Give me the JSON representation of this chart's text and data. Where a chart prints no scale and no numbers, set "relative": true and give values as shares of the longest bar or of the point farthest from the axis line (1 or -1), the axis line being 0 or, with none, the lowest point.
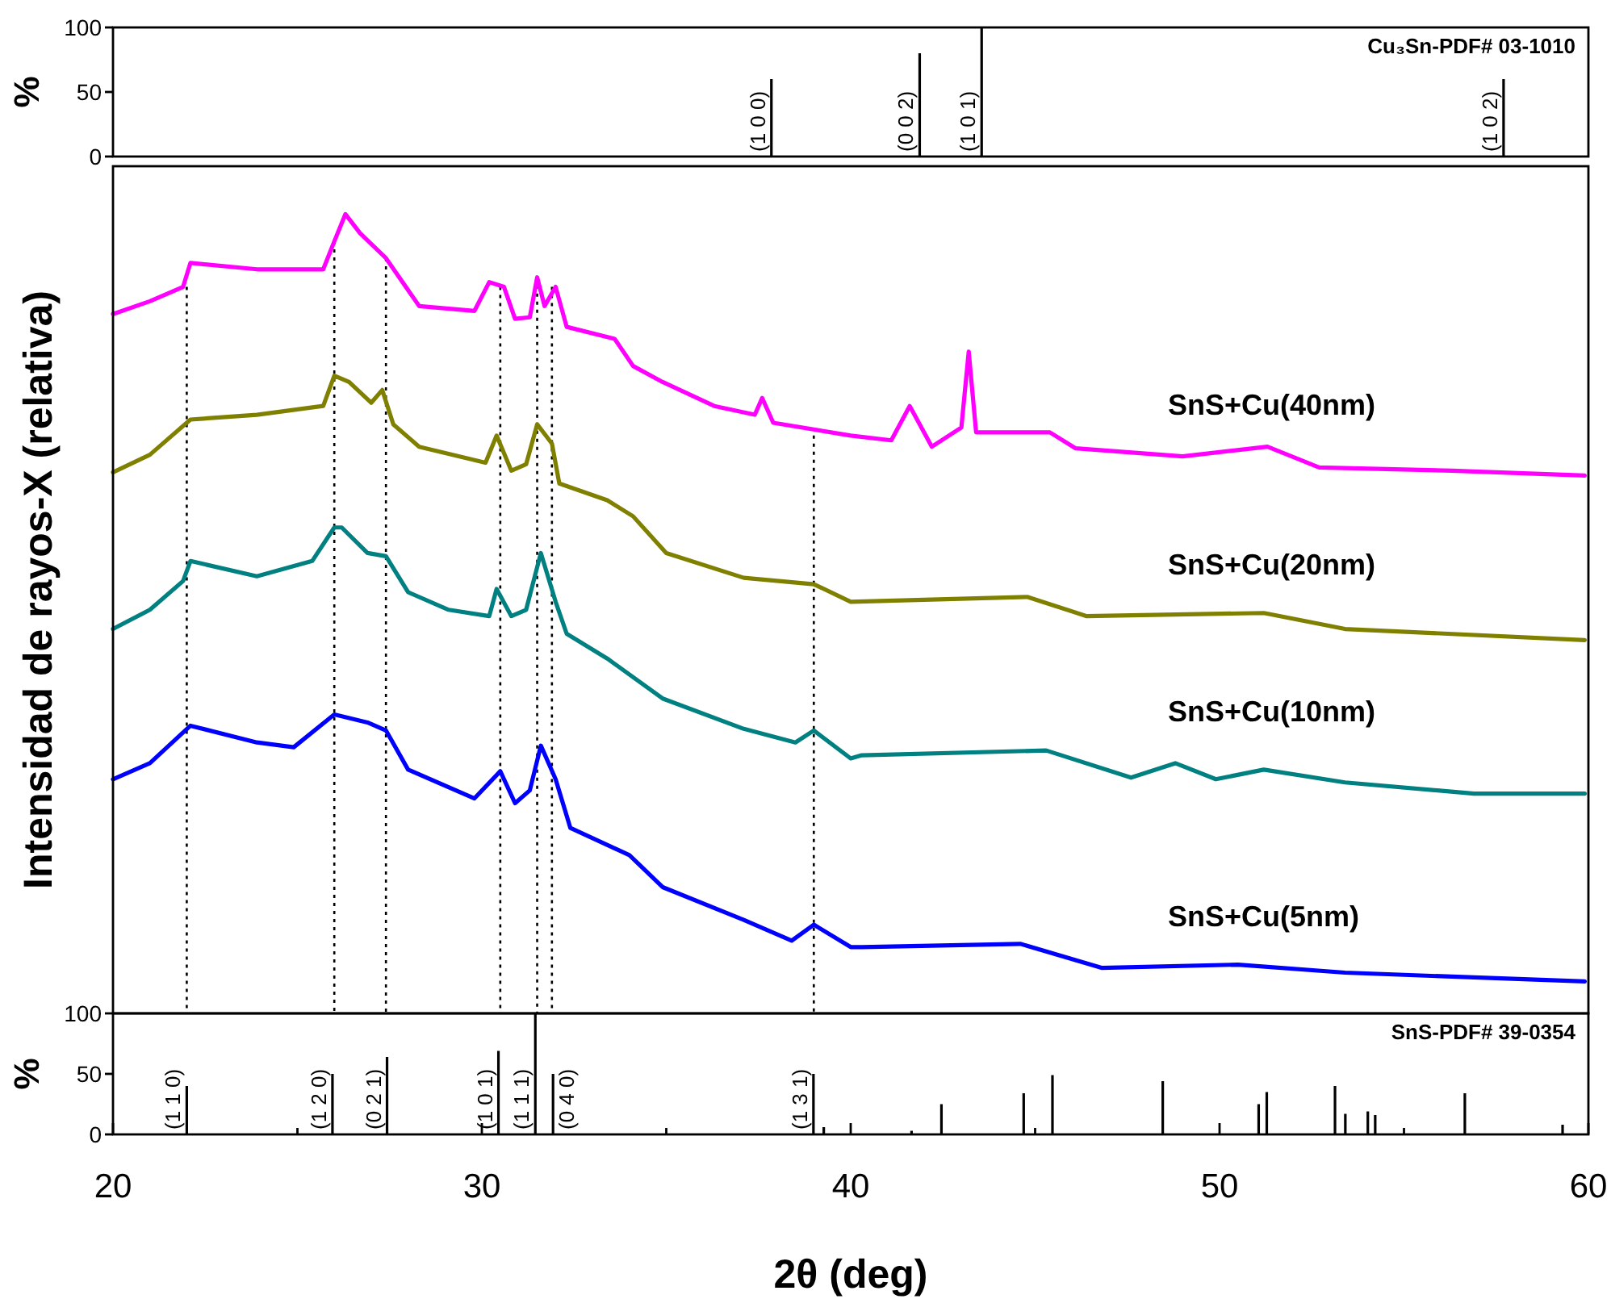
{
  "chart_data": [
    {
      "type": "bar",
      "xlim": [
        20,
        60
      ],
      "ylim": [
        0,
        100
      ],
      "yticks": [
        0,
        50,
        100
      ],
      "ylabel": "%",
      "tick_labels": "y",
      "x": [
        37.85,
        41.87,
        43.55,
        57.7
      ],
      "values": [
        60,
        80,
        100,
        60
      ],
      "color": "#000000",
      "annotations": [
        "Cu₃Sn-PDF# 03-1010",
        {
          "text": "(1 0 0)",
          "x": 37.85,
          "y": 0
        },
        {
          "text": "(0 0 2)",
          "x": 41.87,
          "y": 0
        },
        {
          "text": "(1 0 1)",
          "x": 43.55,
          "y": 0
        },
        {
          "text": "(1 0 2)",
          "x": 57.7,
          "y": 0
        }
      ]
    },
    {
      "type": "line",
      "relative": true,
      "xlim": [
        20,
        60
      ],
      "tick_labels": false,
      "ylabel": "Intensidad de rayos-X (relativa)",
      "line_style": "solid",
      "ref_lines": [
        {
          "axis": "x",
          "value": 22.0,
          "color": "#000000",
          "line_style": "dotted"
        },
        {
          "axis": "x",
          "value": 26.0,
          "color": "#000000",
          "line_style": "dotted"
        },
        {
          "axis": "x",
          "value": 27.4,
          "color": "#000000",
          "line_style": "dotted"
        },
        {
          "axis": "x",
          "value": 30.5,
          "color": "#000000",
          "line_style": "dotted"
        },
        {
          "axis": "x",
          "value": 31.5,
          "color": "#000000",
          "line_style": "dotted"
        },
        {
          "axis": "x",
          "value": 31.9,
          "color": "#000000",
          "line_style": "dotted"
        },
        {
          "axis": "x",
          "value": 39.0,
          "color": "#000000",
          "line_style": "dotted"
        }
      ],
      "series": [
        {
          "name": "SnS+Cu(40nm)",
          "color": "#ff00ff",
          "x": [
            20.0,
            21.0,
            21.9,
            22.1,
            23.9,
            25.7,
            26.0,
            26.3,
            26.7,
            27.4,
            28.3,
            29.8,
            30.2,
            30.6,
            30.9,
            31.3,
            31.5,
            31.7,
            32.0,
            32.3,
            33.6,
            34.1,
            34.9,
            36.3,
            37.4,
            37.6,
            37.9,
            40.0,
            41.1,
            41.6,
            42.2,
            43.0,
            43.2,
            43.4,
            45.4,
            46.1,
            49.0,
            51.3,
            52.7,
            56.3,
            59.9
          ],
          "values": [
            0.875,
            0.891,
            0.909,
            0.939,
            0.931,
            0.931,
            0.966,
            1.0,
            0.976,
            0.945,
            0.885,
            0.879,
            0.915,
            0.909,
            0.869,
            0.871,
            0.921,
            0.885,
            0.909,
            0.859,
            0.844,
            0.81,
            0.79,
            0.76,
            0.749,
            0.77,
            0.739,
            0.723,
            0.717,
            0.76,
            0.709,
            0.733,
            0.828,
            0.727,
            0.727,
            0.707,
            0.697,
            0.709,
            0.683,
            0.679,
            0.673
          ]
        },
        {
          "name": "SnS+Cu(20nm)",
          "color": "#808000",
          "x": [
            20.0,
            21.0,
            22.1,
            23.9,
            25.7,
            26.0,
            26.4,
            27.0,
            27.3,
            27.6,
            28.3,
            30.1,
            30.4,
            30.8,
            31.2,
            31.5,
            31.9,
            32.1,
            33.4,
            34.1,
            35.0,
            37.1,
            39.0,
            40.0,
            44.8,
            46.4,
            51.2,
            53.4,
            59.9
          ],
          "values": [
            0.677,
            0.699,
            0.743,
            0.749,
            0.76,
            0.798,
            0.79,
            0.764,
            0.78,
            0.737,
            0.709,
            0.689,
            0.723,
            0.679,
            0.687,
            0.737,
            0.713,
            0.663,
            0.642,
            0.622,
            0.576,
            0.545,
            0.537,
            0.515,
            0.521,
            0.497,
            0.501,
            0.481,
            0.467
          ]
        },
        {
          "name": "SnS+Cu(10nm)",
          "color": "#008080",
          "x": [
            20.0,
            21.0,
            21.9,
            22.1,
            23.9,
            25.4,
            26.0,
            26.2,
            26.9,
            27.4,
            28.0,
            29.1,
            30.2,
            30.4,
            30.8,
            31.2,
            31.6,
            32.0,
            32.3,
            33.4,
            34.9,
            37.1,
            38.5,
            39.0,
            40.0,
            40.3,
            45.3,
            47.6,
            48.8,
            49.9,
            51.2,
            53.4,
            56.9,
            59.9
          ],
          "values": [
            0.481,
            0.505,
            0.541,
            0.566,
            0.547,
            0.566,
            0.608,
            0.608,
            0.576,
            0.572,
            0.527,
            0.505,
            0.497,
            0.531,
            0.497,
            0.505,
            0.576,
            0.515,
            0.475,
            0.444,
            0.394,
            0.356,
            0.339,
            0.354,
            0.319,
            0.323,
            0.329,
            0.295,
            0.313,
            0.293,
            0.305,
            0.289,
            0.275,
            0.275
          ]
        },
        {
          "name": "SnS+Cu(5nm)",
          "color": "#0000ff",
          "x": [
            20.0,
            21.0,
            22.1,
            23.9,
            24.9,
            26.0,
            26.9,
            27.4,
            28.0,
            29.8,
            30.5,
            30.9,
            31.3,
            31.6,
            32.0,
            32.4,
            34.0,
            34.9,
            37.1,
            38.4,
            39.0,
            40.0,
            40.3,
            44.6,
            46.8,
            50.5,
            53.4,
            56.3,
            59.9
          ],
          "values": [
            0.293,
            0.313,
            0.36,
            0.339,
            0.333,
            0.374,
            0.364,
            0.354,
            0.305,
            0.269,
            0.303,
            0.263,
            0.279,
            0.335,
            0.293,
            0.232,
            0.198,
            0.158,
            0.117,
            0.091,
            0.111,
            0.083,
            0.083,
            0.087,
            0.057,
            0.061,
            0.051,
            0.046,
            0.04
          ]
        }
      ]
    },
    {
      "type": "bar",
      "xlim": [
        20,
        60
      ],
      "ylim": [
        0,
        100
      ],
      "yticks": [
        0,
        50,
        100
      ],
      "xticks": [
        20,
        {
          "value": 25,
          "label": null
        },
        30,
        {
          "value": 35,
          "label": null
        },
        40,
        {
          "value": 45,
          "label": null
        },
        50,
        {
          "value": 55,
          "label": null
        },
        60
      ],
      "xlabel": "2θ (deg)",
      "ylabel": "%",
      "color": "#000000",
      "x": [
        22.0,
        25.95,
        27.43,
        30.45,
        31.45,
        31.93,
        38.99,
        39.27,
        41.65,
        42.46,
        44.69,
        45.47,
        48.46,
        51.06,
        51.28,
        53.13,
        53.41,
        54.02,
        54.22,
        56.65,
        59.3
      ],
      "values": [
        40,
        50,
        64,
        69,
        100,
        50,
        50,
        6,
        3,
        25,
        34,
        49,
        44,
        25,
        35,
        40,
        17,
        19,
        16,
        34,
        8
      ],
      "annotations": [
        "SnS-PDF# 39-0354",
        {
          "text": "(1 1 0)",
          "x": 22.0,
          "y": 0
        },
        {
          "text": "(1 2 0)",
          "x": 25.95,
          "y": 0
        },
        {
          "text": "(0 2 1)",
          "x": 27.43,
          "y": 0
        },
        {
          "text": "(1 0 1)",
          "x": 30.45,
          "y": 0
        },
        {
          "text": "(1 1 1)",
          "x": 31.45,
          "y": 0
        },
        {
          "text": "(0 4 0)",
          "x": 31.93,
          "y": 0
        },
        {
          "text": "(1 3 1)",
          "x": 38.99,
          "y": 0
        }
      ]
    }
  ]
}
